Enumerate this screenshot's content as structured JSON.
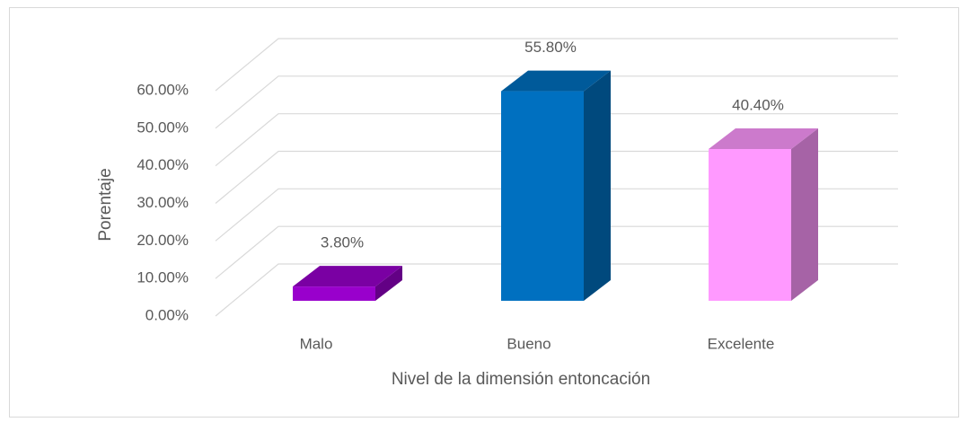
{
  "chart_data": {
    "type": "bar3d",
    "x_label": "Nivel de la dimensión entoncación",
    "y_label": "Porentaje",
    "categories": [
      "Malo",
      "Bueno",
      "Excelente"
    ],
    "values": [
      3.8,
      55.8,
      40.4
    ],
    "value_labels": [
      "3.80%",
      "55.80%",
      "40.40%"
    ],
    "colors": [
      "#9900cc",
      "#0070c0",
      "#ff99ff"
    ],
    "ylim": [
      0,
      60
    ],
    "yticks": [
      {
        "value": 0,
        "label": "0.00%"
      },
      {
        "value": 10,
        "label": "10.00%"
      },
      {
        "value": 20,
        "label": "20.00%"
      },
      {
        "value": 30,
        "label": "30.00%"
      },
      {
        "value": 40,
        "label": "40.00%"
      },
      {
        "value": 50,
        "label": "50.00%"
      },
      {
        "value": 60,
        "label": "60.00%"
      }
    ],
    "grid": true
  }
}
